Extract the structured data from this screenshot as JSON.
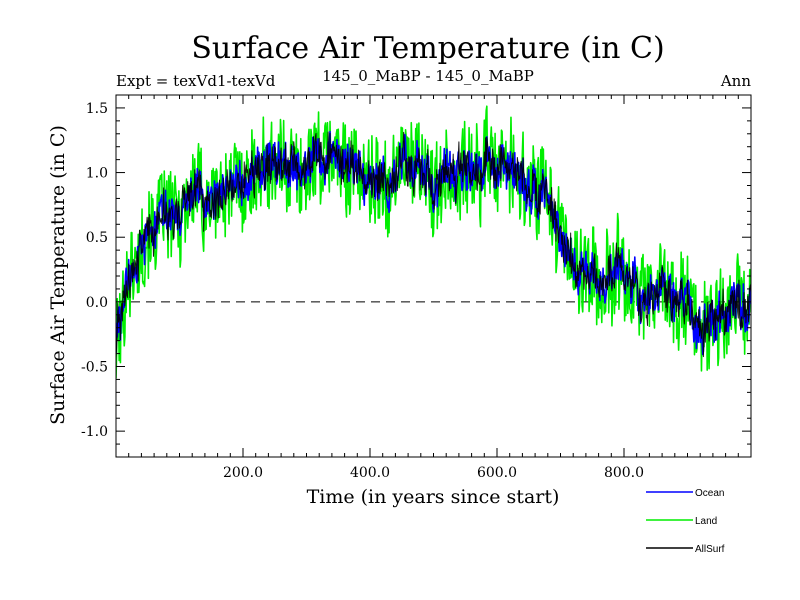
{
  "chart_data": {
    "type": "line",
    "title": "Surface Air Temperature (in C)",
    "subtitle_left": "Expt = texVd1-texVd",
    "subtitle_center": "145_0_MaBP - 145_0_MaBP",
    "subtitle_right": "Ann",
    "xlabel": "Time (in years since start)",
    "ylabel": "Surface Air Temperature (in C)",
    "xlim": [
      0,
      1000
    ],
    "ylim": [
      -1.2,
      1.6
    ],
    "xticks": [
      200,
      400,
      600,
      800
    ],
    "xtick_labels": [
      "200.0",
      "400.0",
      "600.0",
      "800.0"
    ],
    "yticks": [
      -1.0,
      -0.5,
      0.0,
      0.5,
      1.0,
      1.5
    ],
    "ytick_labels": [
      "-1.0",
      "-0.5",
      "0.0",
      "0.5",
      "1.0",
      "1.5"
    ],
    "reference_line": 0.0,
    "legend_position": "bottom-right",
    "series": [
      {
        "name": "Land",
        "color": "#00ee00",
        "x": [
          0,
          20,
          40,
          60,
          80,
          100,
          120,
          140,
          160,
          180,
          200,
          220,
          240,
          260,
          280,
          300,
          320,
          340,
          360,
          380,
          400,
          420,
          440,
          460,
          480,
          500,
          520,
          540,
          560,
          580,
          600,
          620,
          640,
          660,
          680,
          700,
          720,
          740,
          760,
          780,
          800,
          820,
          840,
          860,
          880,
          900,
          920,
          940,
          960,
          980,
          1000
        ],
        "values": [
          -0.4,
          0.15,
          0.45,
          0.6,
          0.65,
          0.7,
          0.75,
          0.8,
          0.85,
          0.9,
          0.95,
          1.0,
          1.0,
          1.05,
          1.05,
          1.05,
          1.1,
          1.2,
          1.1,
          1.0,
          0.95,
          1.0,
          1.05,
          1.0,
          0.95,
          0.95,
          1.0,
          1.0,
          1.0,
          1.05,
          1.1,
          1.05,
          1.0,
          1.0,
          0.85,
          0.45,
          0.35,
          0.25,
          0.2,
          0.15,
          0.1,
          0.1,
          0.1,
          0.1,
          0.05,
          0.05,
          -0.1,
          -0.1,
          -0.1,
          -0.05,
          0.0
        ],
        "noise_amplitude": 0.35
      },
      {
        "name": "Ocean",
        "color": "#0000ff",
        "x": [
          0,
          20,
          40,
          60,
          80,
          100,
          120,
          140,
          160,
          180,
          200,
          220,
          240,
          260,
          280,
          300,
          320,
          340,
          360,
          380,
          400,
          420,
          440,
          460,
          480,
          500,
          520,
          540,
          560,
          580,
          600,
          620,
          640,
          660,
          680,
          700,
          720,
          740,
          760,
          780,
          800,
          820,
          840,
          860,
          880,
          900,
          920,
          940,
          960,
          980,
          1000
        ],
        "values": [
          -0.3,
          0.15,
          0.45,
          0.6,
          0.65,
          0.7,
          0.75,
          0.8,
          0.85,
          0.9,
          0.95,
          1.0,
          1.0,
          1.05,
          1.05,
          1.05,
          1.1,
          1.2,
          1.1,
          1.0,
          0.95,
          1.0,
          1.05,
          1.0,
          0.95,
          0.95,
          1.0,
          1.0,
          1.0,
          1.05,
          1.1,
          1.05,
          1.0,
          1.0,
          0.85,
          0.45,
          0.35,
          0.25,
          0.2,
          0.15,
          0.1,
          0.1,
          0.1,
          0.1,
          0.05,
          0.05,
          -0.1,
          -0.1,
          -0.1,
          -0.05,
          0.0
        ],
        "noise_amplitude": 0.14
      },
      {
        "name": "AllSurf",
        "color": "#000000",
        "x": [
          0,
          20,
          40,
          60,
          80,
          100,
          120,
          140,
          160,
          180,
          200,
          220,
          240,
          260,
          280,
          300,
          320,
          340,
          360,
          380,
          400,
          420,
          440,
          460,
          480,
          500,
          520,
          540,
          560,
          580,
          600,
          620,
          640,
          660,
          680,
          700,
          720,
          740,
          760,
          780,
          800,
          820,
          840,
          860,
          880,
          900,
          920,
          940,
          960,
          980,
          1000
        ],
        "values": [
          -0.3,
          0.15,
          0.45,
          0.6,
          0.65,
          0.7,
          0.75,
          0.8,
          0.85,
          0.9,
          0.95,
          1.0,
          1.0,
          1.05,
          1.05,
          1.05,
          1.1,
          1.2,
          1.1,
          1.0,
          0.95,
          1.0,
          1.05,
          1.0,
          0.95,
          0.95,
          1.0,
          1.0,
          1.0,
          1.05,
          1.1,
          1.05,
          1.0,
          1.0,
          0.85,
          0.45,
          0.35,
          0.25,
          0.2,
          0.15,
          0.1,
          0.1,
          0.1,
          0.1,
          0.05,
          0.05,
          -0.1,
          -0.1,
          -0.1,
          -0.05,
          0.0
        ],
        "noise_amplitude": 0.14
      }
    ],
    "legend": [
      {
        "name": "Ocean",
        "color": "#0000ff"
      },
      {
        "name": "Land",
        "color": "#00ee00"
      },
      {
        "name": "AllSurf",
        "color": "#000000"
      }
    ]
  }
}
